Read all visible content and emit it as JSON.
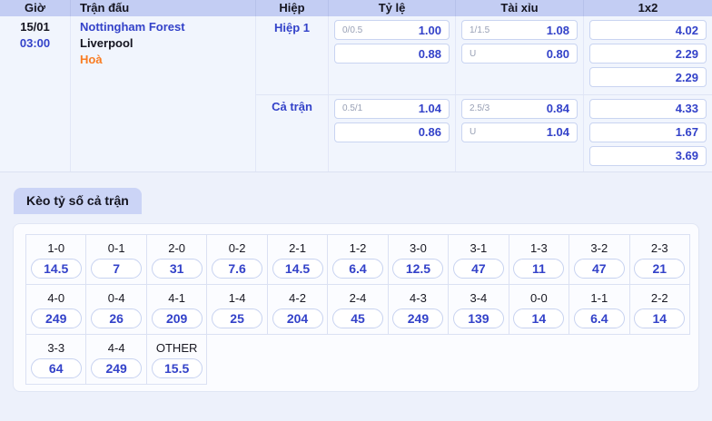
{
  "colors": {
    "accent_blue": "#3342c9",
    "accent_orange": "#f97c22",
    "header_bg": "#c3cdf3",
    "page_bg": "#edf1fb"
  },
  "table": {
    "headers": [
      "Giờ",
      "Trận đấu",
      "Hiệp",
      "Tỷ lệ",
      "Tài xỉu",
      "1x2"
    ],
    "match": {
      "date": "15/01",
      "time": "03:00",
      "home": "Nottingham Forest",
      "away": "Liverpool",
      "result": "Hoà"
    },
    "periods": [
      {
        "label": "Hiệp 1",
        "handicap": [
          {
            "line": "0/0.5",
            "odds": "1.00"
          },
          {
            "line": "",
            "odds": "0.88"
          }
        ],
        "over_under": [
          {
            "line": "1/1.5",
            "odds": "1.08"
          },
          {
            "line": "U",
            "odds": "0.80"
          }
        ],
        "one_x_two": [
          "4.02",
          "2.29",
          "2.29"
        ]
      },
      {
        "label": "Cả trận",
        "handicap": [
          {
            "line": "0.5/1",
            "odds": "1.04"
          },
          {
            "line": "",
            "odds": "0.86"
          }
        ],
        "over_under": [
          {
            "line": "2.5/3",
            "odds": "0.84"
          },
          {
            "line": "U",
            "odds": "1.04"
          }
        ],
        "one_x_two": [
          "4.33",
          "1.67",
          "3.69"
        ]
      }
    ]
  },
  "correct_score": {
    "title": "Kèo tỷ số cả trận",
    "items": [
      {
        "score": "1-0",
        "odds": "14.5"
      },
      {
        "score": "0-1",
        "odds": "7"
      },
      {
        "score": "2-0",
        "odds": "31"
      },
      {
        "score": "0-2",
        "odds": "7.6"
      },
      {
        "score": "2-1",
        "odds": "14.5"
      },
      {
        "score": "1-2",
        "odds": "6.4"
      },
      {
        "score": "3-0",
        "odds": "12.5"
      },
      {
        "score": "3-1",
        "odds": "47"
      },
      {
        "score": "1-3",
        "odds": "11"
      },
      {
        "score": "3-2",
        "odds": "47"
      },
      {
        "score": "2-3",
        "odds": "21"
      },
      {
        "score": "4-0",
        "odds": "249"
      },
      {
        "score": "0-4",
        "odds": "26"
      },
      {
        "score": "4-1",
        "odds": "209"
      },
      {
        "score": "1-4",
        "odds": "25"
      },
      {
        "score": "4-2",
        "odds": "204"
      },
      {
        "score": "2-4",
        "odds": "45"
      },
      {
        "score": "4-3",
        "odds": "249"
      },
      {
        "score": "3-4",
        "odds": "139"
      },
      {
        "score": "0-0",
        "odds": "14"
      },
      {
        "score": "1-1",
        "odds": "6.4"
      },
      {
        "score": "2-2",
        "odds": "14"
      },
      {
        "score": "3-3",
        "odds": "64"
      },
      {
        "score": "4-4",
        "odds": "249"
      },
      {
        "score": "OTHER",
        "odds": "15.5"
      }
    ]
  }
}
